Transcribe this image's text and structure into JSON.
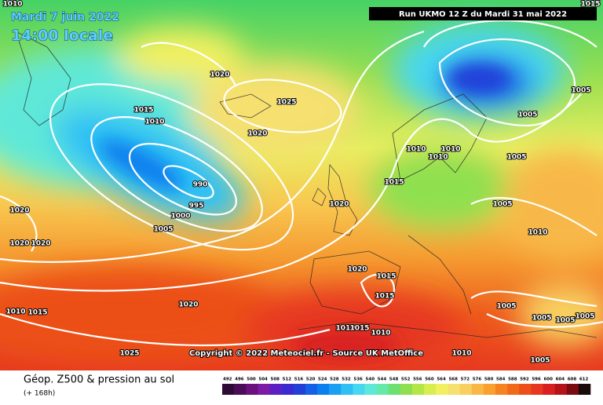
{
  "header": {
    "date": "Mardi 7 juin 2022",
    "time": "14:00 locale",
    "run": "Run UKMO 12 Z du Mardi 31 mai 2022"
  },
  "map": {
    "isobar_labels": [
      "1010",
      "1015",
      "1020",
      "1025",
      "1015",
      "1010",
      "1020",
      "990",
      "995",
      "1000",
      "1005",
      "1020",
      "1020",
      "1020",
      "1010",
      "1010",
      "1010",
      "1015",
      "1020",
      "1005",
      "1005",
      "1005",
      "1005",
      "1010",
      "1020",
      "1015",
      "1015",
      "1020",
      "1005",
      "1005",
      "1005",
      "1005",
      "1010",
      "1015",
      "1010",
      "1015",
      "1010",
      "1025",
      "1010",
      "1005"
    ],
    "copyright": "Copyright © 2022 Meteociel.fr - Source UK MetOffice"
  },
  "legend": {
    "title": "Géop. Z500 & pression au sol",
    "subtitle": "(+ 168h)",
    "values": [
      492,
      496,
      500,
      504,
      508,
      512,
      516,
      520,
      524,
      528,
      532,
      536,
      540,
      544,
      548,
      552,
      556,
      560,
      564,
      568,
      572,
      576,
      580,
      584,
      588,
      592,
      596,
      600,
      604,
      608,
      612
    ],
    "colors": [
      "#2e0a36",
      "#4b0d5a",
      "#6a117e",
      "#7d1aa6",
      "#5b1fc2",
      "#3a2ad0",
      "#2040d8",
      "#1460e6",
      "#0a80ee",
      "#1aa0f2",
      "#2ec0f5",
      "#46d8f0",
      "#5ee8d8",
      "#66e8a8",
      "#6ee070",
      "#8ee050",
      "#b4e648",
      "#d8ee50",
      "#f2f060",
      "#f6e070",
      "#f8d060",
      "#f8b848",
      "#f8a030",
      "#f58420",
      "#f06a18",
      "#ec5018",
      "#e63820",
      "#d82020",
      "#b41418",
      "#7a0c10",
      "#1a0a0a"
    ]
  }
}
